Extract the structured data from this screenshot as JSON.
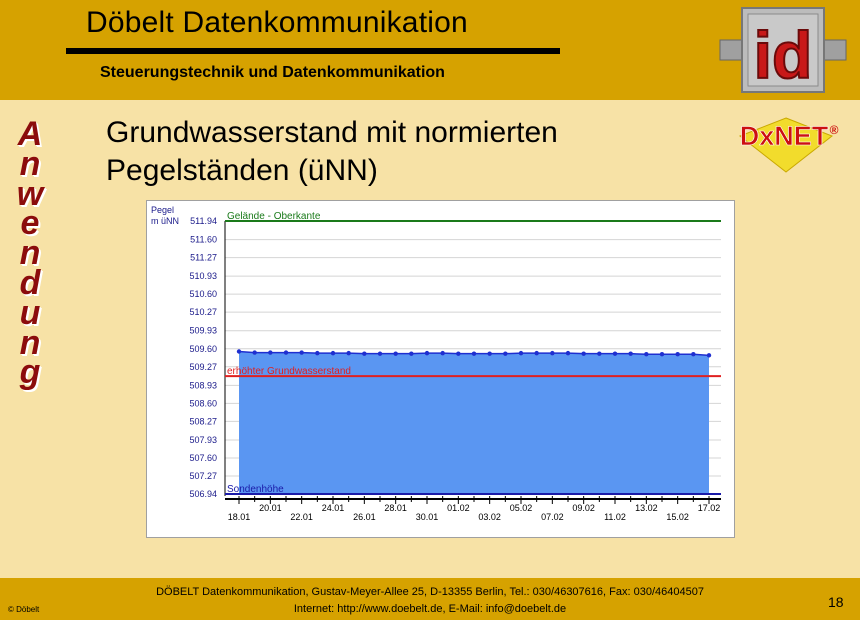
{
  "header": {
    "title": "Döbelt Datenkommunikation",
    "subtitle": "Steuerungstechnik und Datenkommunikation",
    "logo_text": "id"
  },
  "sidebar": {
    "vertical_word": "Anwendung"
  },
  "slide": {
    "title_line1": "Grundwasserstand mit normierten",
    "title_line2": "Pegelständen (üNN)",
    "brand_text": "DxNET",
    "brand_mark": "®"
  },
  "chart_data": {
    "type": "area",
    "y_axis_title_line1": "Pegel",
    "y_axis_title_line2": "m üNN",
    "ylim": [
      506.94,
      511.94
    ],
    "y_ticks": [
      "511.94",
      "511.60",
      "511.27",
      "510.93",
      "510.60",
      "510.27",
      "509.93",
      "509.60",
      "509.27",
      "508.93",
      "508.60",
      "508.27",
      "507.93",
      "507.60",
      "507.27",
      "506.94"
    ],
    "x_tick_labels_bottom": [
      "18.01",
      "22.01",
      "26.01",
      "30.01",
      "03.02",
      "07.02",
      "11.02",
      "15.02"
    ],
    "x_tick_labels_top": [
      "20.01",
      "24.01",
      "28.01",
      "01.02",
      "05.02",
      "09.02",
      "13.02",
      "17.02"
    ],
    "x": [
      "18.01",
      "19.01",
      "20.01",
      "21.01",
      "22.01",
      "23.01",
      "24.01",
      "25.01",
      "26.01",
      "27.01",
      "28.01",
      "29.01",
      "30.01",
      "31.01",
      "01.02",
      "02.02",
      "03.02",
      "04.02",
      "05.02",
      "06.02",
      "07.02",
      "08.02",
      "09.02",
      "10.02",
      "11.02",
      "12.02",
      "13.02",
      "14.02",
      "15.02",
      "16.02",
      "17.02"
    ],
    "series": [
      {
        "values": [
          509.55,
          509.53,
          509.53,
          509.53,
          509.53,
          509.52,
          509.52,
          509.52,
          509.51,
          509.51,
          509.51,
          509.51,
          509.52,
          509.52,
          509.51,
          509.51,
          509.51,
          509.51,
          509.52,
          509.52,
          509.52,
          509.52,
          509.51,
          509.51,
          509.51,
          509.51,
          509.5,
          509.5,
          509.5,
          509.5,
          509.48
        ],
        "color": "#1f2fd0",
        "fill": "#5a96f2"
      }
    ],
    "reference_lines": [
      {
        "label": "Gelände - Oberkante",
        "value": 511.94,
        "color": "#1a7a1a"
      },
      {
        "label": "erhöhter Grundwasserstand",
        "value": 509.1,
        "color": "#e02020"
      },
      {
        "label": "Sondenhöhe",
        "value": 506.94,
        "color": "#1a1aa8"
      }
    ],
    "grid": true
  },
  "footer": {
    "address": "DÖBELT Datenkommunikation, Gustav-Meyer-Allee 25, D-13355 Berlin, Tel.: 030/46307616, Fax: 030/46404507",
    "contact": "Internet: http://www.doebelt.de, E-Mail: info@doebelt.de",
    "copyright": "© Döbelt",
    "page_number": "18"
  },
  "colors": {
    "header_band": "#d6a200",
    "body_bg": "#f7e2a6",
    "accent_red": "#8b0c0c"
  }
}
